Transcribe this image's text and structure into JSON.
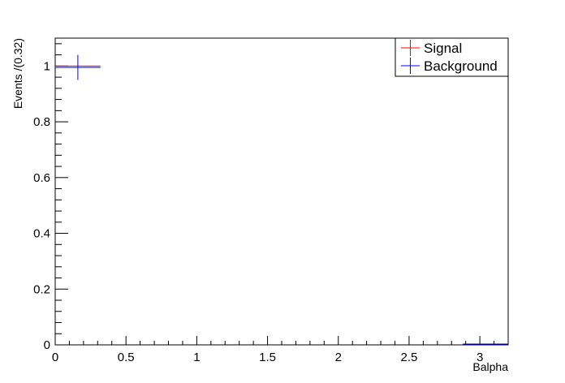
{
  "chart_data": {
    "type": "scatter",
    "xlabel": "Balpha",
    "ylabel": "Events /(0.32)",
    "xlim": [
      0,
      3.2
    ],
    "ylim": [
      0,
      1.1
    ],
    "x_ticks": [
      0,
      0.5,
      1,
      1.5,
      2,
      2.5,
      3
    ],
    "x_tick_labels": [
      "0",
      "0.5",
      "1",
      "1.5",
      "2",
      "2.5",
      "3"
    ],
    "y_ticks": [
      0,
      0.2,
      0.4,
      0.6,
      0.8,
      1
    ],
    "y_tick_labels": [
      "0",
      "0.2",
      "0.4",
      "0.6",
      "0.8",
      "1"
    ],
    "grid": false,
    "legend_position": "top-right",
    "series": [
      {
        "name": "Signal",
        "color": "#ff0000",
        "points": [
          {
            "x": 0.16,
            "y": 1.0,
            "xerr": 0.16,
            "yerr": 0.0
          }
        ]
      },
      {
        "name": "Background",
        "color": "#0000ff",
        "points": [
          {
            "x": 0.16,
            "y": 0.995,
            "xerr": 0.16,
            "yerr": 0.045
          },
          {
            "x": 3.04,
            "y": 0.003,
            "xerr": 0.16,
            "yerr": 0.0
          }
        ]
      }
    ]
  }
}
